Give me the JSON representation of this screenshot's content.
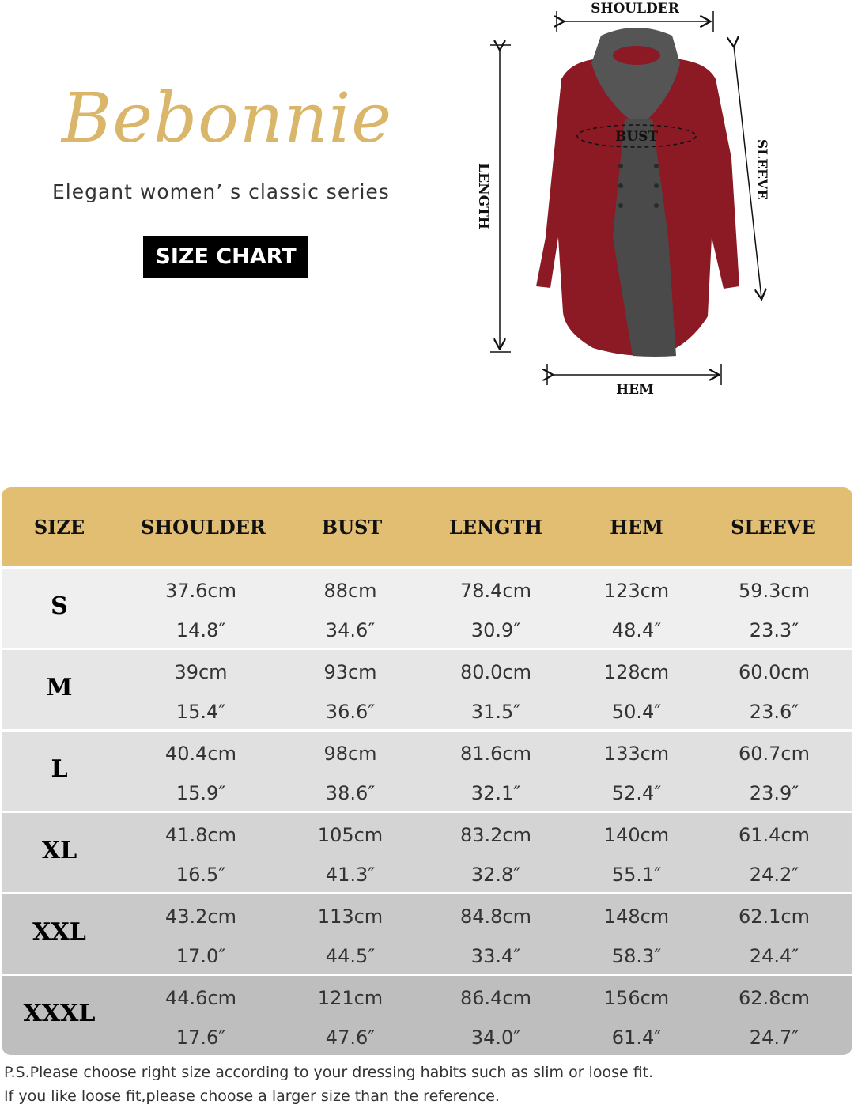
{
  "brand": {
    "logo": "Bebonnie",
    "tagline": "Elegant women’ s classic series",
    "badge": "SIZE CHART",
    "gold": "#D9B66A"
  },
  "diagram": {
    "shoulder": "SHOULDER",
    "bust": "BUST",
    "length": "LENGTH",
    "sleeve": "SLEEVE",
    "hem": "HEM",
    "garment_color": "#8B1A24",
    "scarf_color": "#4a4a4a"
  },
  "table": {
    "header_color": "#E1BE72",
    "headers": [
      "SIZE",
      "SHOULDER",
      "BUST",
      "LENGTH",
      "HEM",
      "SLEEVE"
    ],
    "rows": [
      {
        "size": "S",
        "cm": [
          "37.6cm",
          "88cm",
          "78.4cm",
          "123cm",
          "59.3cm"
        ],
        "inch": [
          "14.8″",
          "34.6″",
          "30.9″",
          "48.4″",
          "23.3″"
        ]
      },
      {
        "size": "M",
        "cm": [
          "39cm",
          "93cm",
          "80.0cm",
          "128cm",
          "60.0cm"
        ],
        "inch": [
          "15.4″",
          "36.6″",
          "31.5″",
          "50.4″",
          "23.6″"
        ]
      },
      {
        "size": "L",
        "cm": [
          "40.4cm",
          "98cm",
          "81.6cm",
          "133cm",
          "60.7cm"
        ],
        "inch": [
          "15.9″",
          "38.6″",
          "32.1″",
          "52.4″",
          "23.9″"
        ]
      },
      {
        "size": "XL",
        "cm": [
          "41.8cm",
          "105cm",
          "83.2cm",
          "140cm",
          "61.4cm"
        ],
        "inch": [
          "16.5″",
          "41.3″",
          "32.8″",
          "55.1″",
          "24.2″"
        ]
      },
      {
        "size": "XXL",
        "cm": [
          "43.2cm",
          "113cm",
          "84.8cm",
          "148cm",
          "62.1cm"
        ],
        "inch": [
          "17.0″",
          "44.5″",
          "33.4″",
          "58.3″",
          "24.4″"
        ]
      },
      {
        "size": "XXXL",
        "cm": [
          "44.6cm",
          "121cm",
          "86.4cm",
          "156cm",
          "62.8cm"
        ],
        "inch": [
          "17.6″",
          "47.6″",
          "34.0″",
          "61.4″",
          "24.7″"
        ]
      }
    ]
  },
  "notes": [
    "P.S.Please choose right size according to your dressing habits such as slim or loose fit.",
    "If you like loose fit,please choose a larger size than the reference."
  ]
}
